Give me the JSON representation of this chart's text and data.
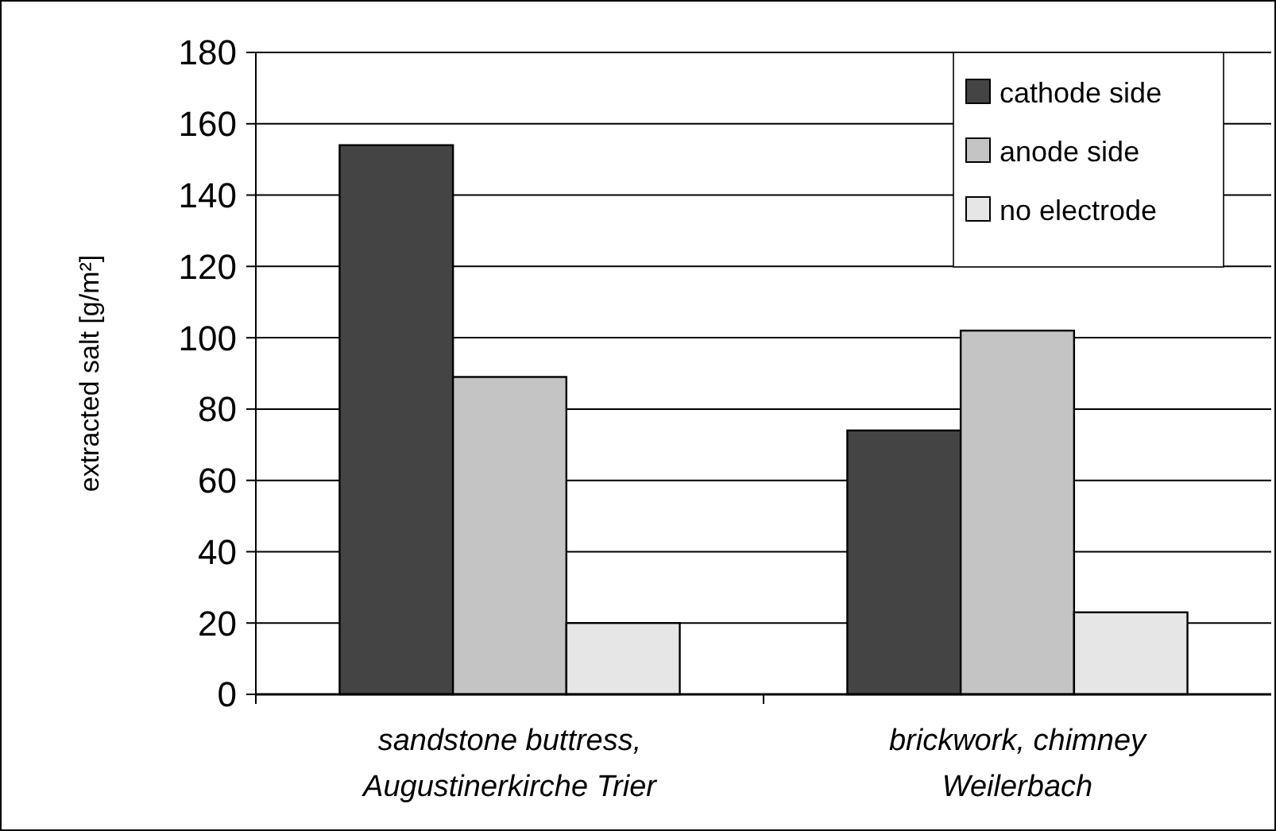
{
  "chart_data": {
    "type": "bar",
    "ylabel": "extracted salt [g/m²]",
    "categories": [
      "sandstone buttress,\nAugustinerkirche Trier",
      "brickwork, chimney\nWeilerbach"
    ],
    "series": [
      {
        "name": "cathode side",
        "color": "#444444",
        "values": [
          154,
          74
        ]
      },
      {
        "name": "anode side",
        "color": "#c4c4c4",
        "values": [
          89,
          102
        ]
      },
      {
        "name": "no electrode",
        "color": "#e6e6e6",
        "values": [
          20,
          23
        ]
      }
    ],
    "ylim": [
      0,
      180
    ],
    "yticks": [
      0,
      20,
      40,
      60,
      80,
      100,
      120,
      140,
      160,
      180
    ],
    "grid": "y",
    "legend": "top right"
  }
}
